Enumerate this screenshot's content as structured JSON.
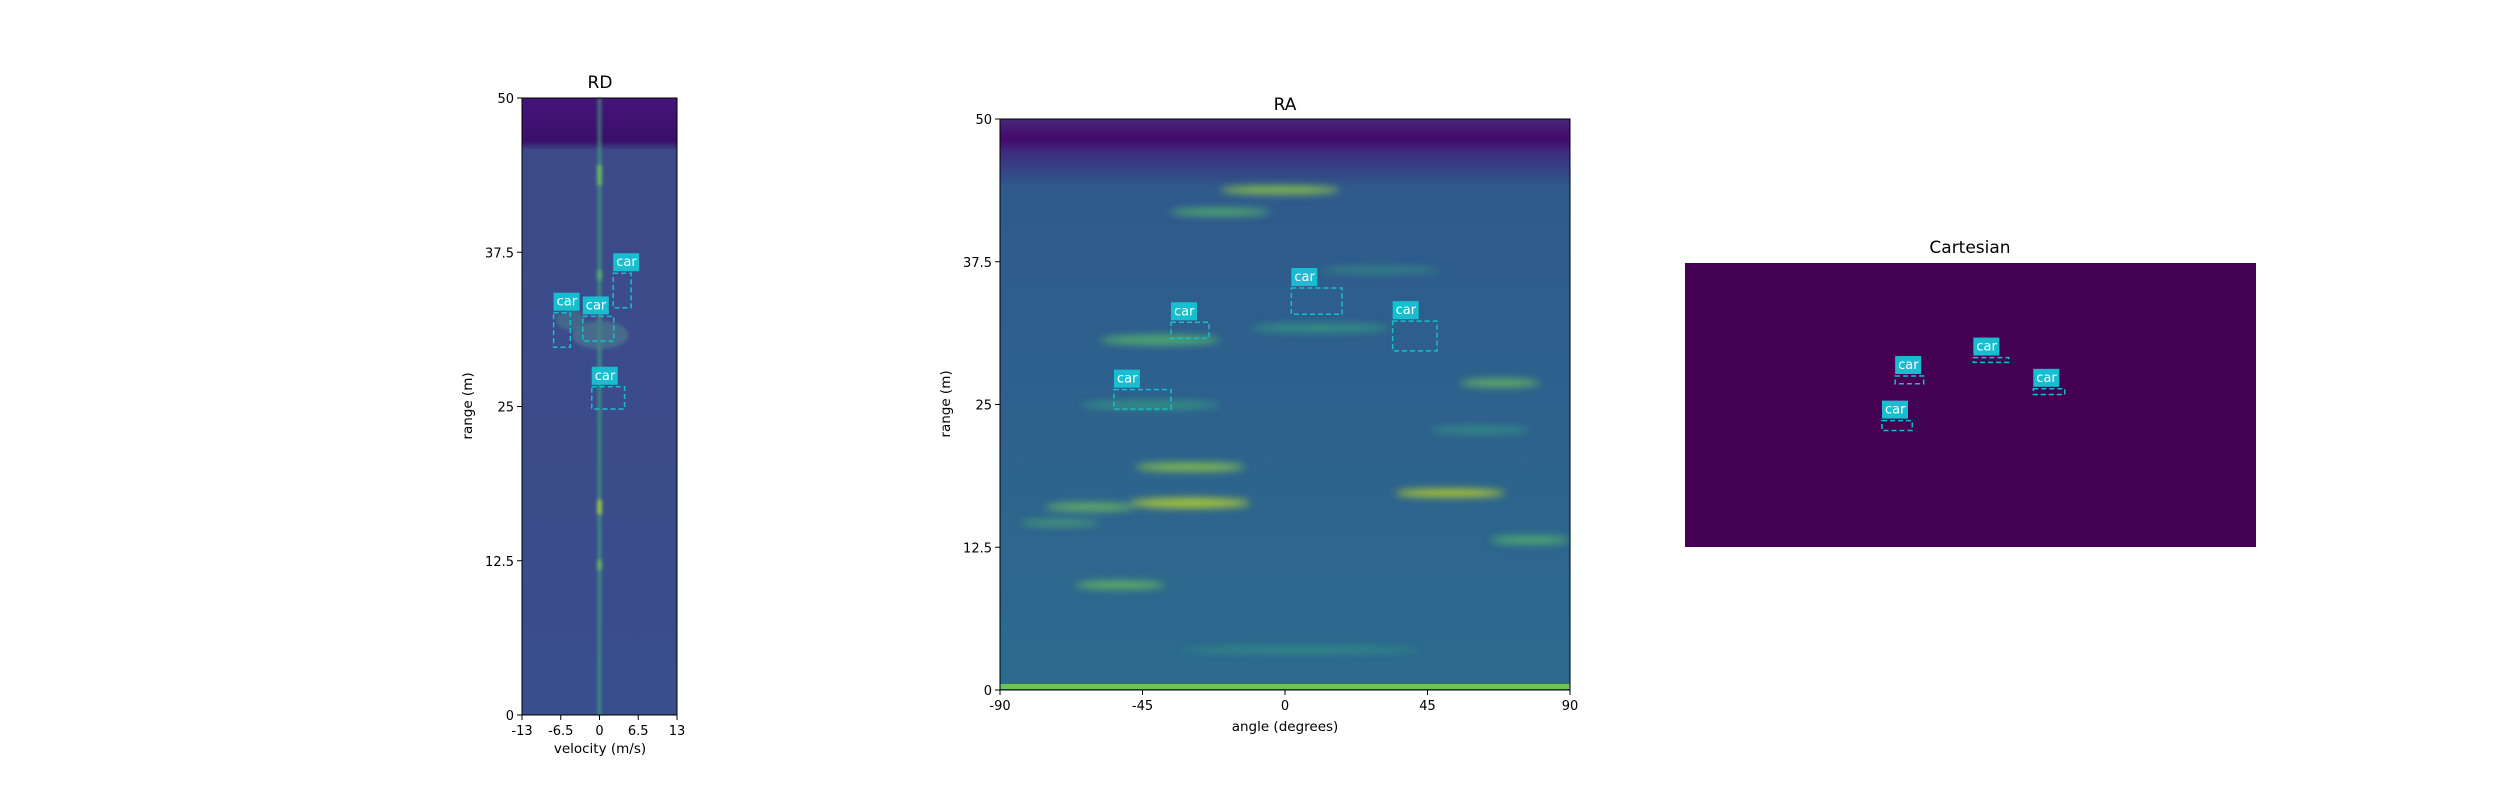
{
  "chart_data": [
    {
      "type": "heatmap",
      "title": "RD",
      "xlabel": "velocity (m/s)",
      "ylabel": "range (m)",
      "xlim": [
        -13,
        13
      ],
      "ylim": [
        0,
        50
      ],
      "xticks": [
        "-13",
        "-6.5",
        "0",
        "6.5",
        "13"
      ],
      "yticks": [
        "0",
        "12.5",
        "25",
        "37.5",
        "50"
      ],
      "colormap": "viridis",
      "boxes": [
        {
          "label": "car",
          "x0": 2.3,
          "x1": 5.3,
          "y0": 33.0,
          "y1": 35.8
        },
        {
          "label": "car",
          "x0": -7.7,
          "x1": -4.9,
          "y0": 29.8,
          "y1": 32.6
        },
        {
          "label": "car",
          "x0": -2.8,
          "x1": 2.4,
          "y0": 30.3,
          "y1": 32.3
        },
        {
          "label": "car",
          "x0": -1.3,
          "x1": 4.2,
          "y0": 24.8,
          "y1": 26.6
        }
      ]
    },
    {
      "type": "heatmap",
      "title": "RA",
      "xlabel": "angle (degrees)",
      "ylabel": "range (m)",
      "xlim": [
        -90,
        90
      ],
      "ylim": [
        0,
        50
      ],
      "xticks": [
        "-90",
        "-45",
        "0",
        "45",
        "90"
      ],
      "yticks": [
        "0",
        "12.5",
        "25",
        "37.5",
        "50"
      ],
      "colormap": "viridis",
      "boxes": [
        {
          "label": "car",
          "x0": 2,
          "x1": 18,
          "y0": 32.9,
          "y1": 35.2
        },
        {
          "label": "car",
          "x0": -36,
          "x1": -24,
          "y0": 30.8,
          "y1": 32.2
        },
        {
          "label": "car",
          "x0": 34,
          "x1": 48,
          "y0": 29.7,
          "y1": 32.3
        },
        {
          "label": "car",
          "x0": -54,
          "x1": -36,
          "y0": 24.6,
          "y1": 26.3
        }
      ]
    },
    {
      "type": "heatmap",
      "title": "Cartesian",
      "boxes": [
        {
          "label": "car",
          "x0": 0.368,
          "x1": 0.418,
          "y0": 0.575,
          "y1": 0.602
        },
        {
          "label": "car",
          "x0": 0.505,
          "x1": 0.567,
          "y0": 0.65,
          "y1": 0.667
        },
        {
          "label": "car",
          "x0": 0.61,
          "x1": 0.665,
          "y0": 0.537,
          "y1": 0.557
        },
        {
          "label": "car",
          "x0": 0.345,
          "x1": 0.398,
          "y0": 0.41,
          "y1": 0.445
        }
      ]
    }
  ],
  "colors": {
    "box": "#17becf",
    "label_bg": "#17becf",
    "label_text": "#ffffff",
    "rd_background": "#3b4a8a",
    "ra_background": "#2f5f8c",
    "cartesian_background": "#440154"
  }
}
